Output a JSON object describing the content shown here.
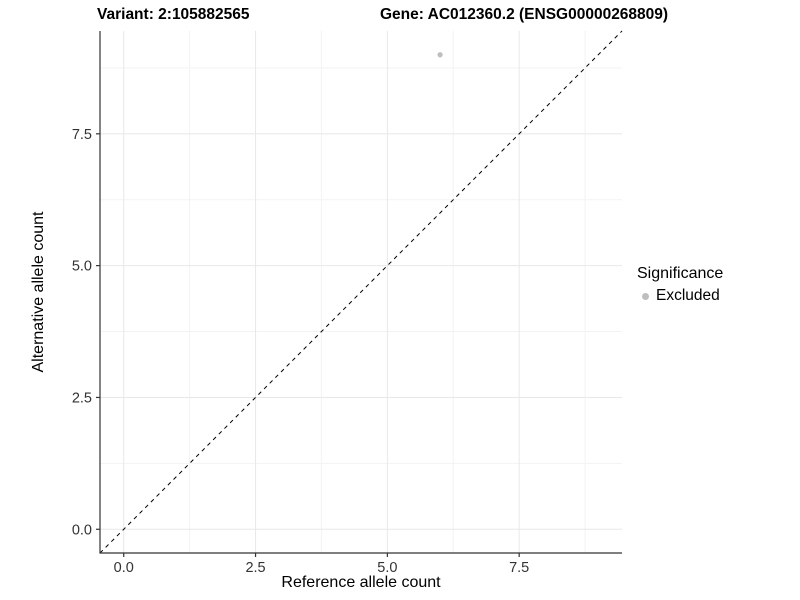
{
  "titles": {
    "variant": "Variant: 2:105882565",
    "gene": "Gene: AC012360.2 (ENSG00000268809)"
  },
  "chart_data": {
    "type": "scatter",
    "title": "Variant: 2:105882565  |  Gene: AC012360.2 (ENSG00000268809)",
    "xlabel": "Reference allele count",
    "ylabel": "Alternative allele count",
    "xlim": [
      -0.45,
      9.45
    ],
    "ylim": [
      -0.45,
      9.45
    ],
    "x_ticks": [
      0.0,
      2.5,
      5.0,
      7.5
    ],
    "y_ticks": [
      0.0,
      2.5,
      5.0,
      7.5
    ],
    "x_tick_labels": [
      "0.0",
      "2.5",
      "5.0",
      "7.5"
    ],
    "y_tick_labels": [
      "0.0",
      "2.5",
      "5.0",
      "7.5"
    ],
    "x_minor_ticks": [
      1.25,
      3.75,
      6.25,
      8.75
    ],
    "y_minor_ticks": [
      1.25,
      3.75,
      6.25,
      8.75
    ],
    "grid": true,
    "legend_position": "right",
    "series": [
      {
        "name": "Excluded",
        "marker": "circle",
        "color": "#bebebe",
        "points": [
          {
            "x": 6,
            "y": 9
          }
        ]
      }
    ],
    "reference_line": {
      "kind": "abline",
      "slope": 1,
      "intercept": 0,
      "style": "dashed",
      "color": "#000000"
    },
    "legend": {
      "title": "Significance",
      "items": [
        {
          "label": "Excluded",
          "color": "#bebebe",
          "marker": "circle"
        }
      ]
    }
  },
  "colors": {
    "background": "#ffffff",
    "grid_major": "#e8e8e8",
    "grid_minor": "#f3f3f3",
    "axis_line": "#333333",
    "tick_mark": "#333333",
    "tick_label": "#333333",
    "point": "#bebebe"
  }
}
